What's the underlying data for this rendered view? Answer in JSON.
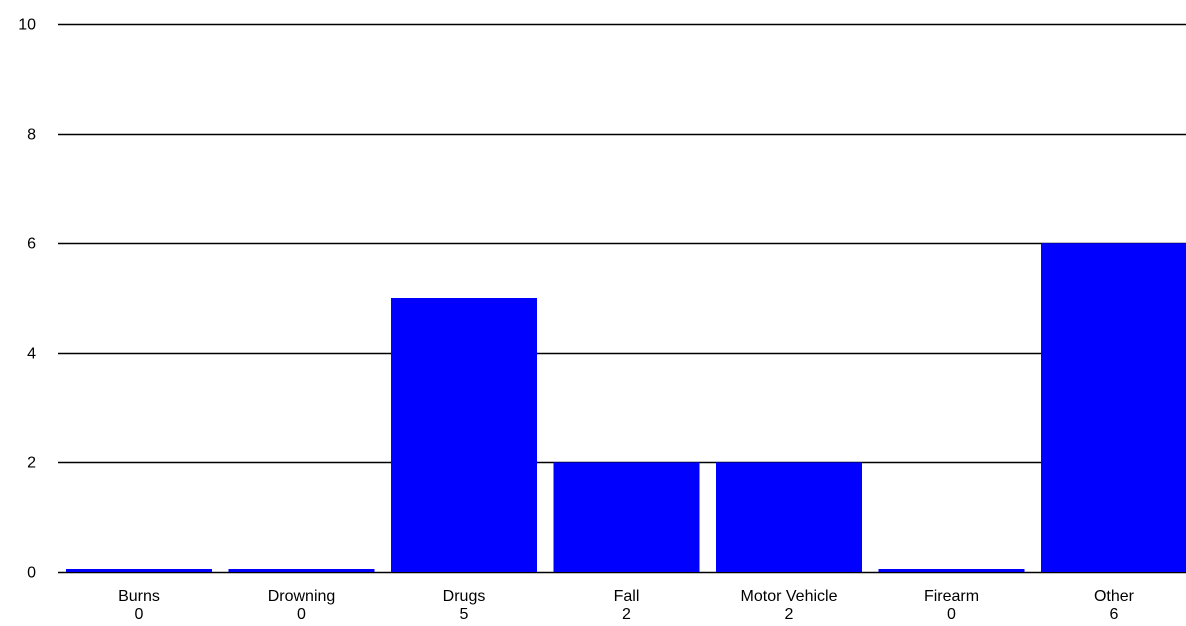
{
  "chart_data": {
    "type": "bar",
    "categories": [
      "Burns",
      "Drowning",
      "Drugs",
      "Fall",
      "Motor Vehicle",
      "Firearm",
      "Other"
    ],
    "values": [
      0,
      0,
      5,
      2,
      2,
      0,
      6
    ],
    "value_labels": [
      "0",
      "0",
      "5",
      "2",
      "2",
      "0",
      "6"
    ],
    "yticks": [
      0,
      2,
      4,
      6,
      8,
      10
    ],
    "ytick_labels": [
      "0",
      "2",
      "4",
      "6",
      "8",
      "10"
    ],
    "ylim": [
      0,
      10
    ],
    "grid": true,
    "bar_color": "#0000ff"
  }
}
